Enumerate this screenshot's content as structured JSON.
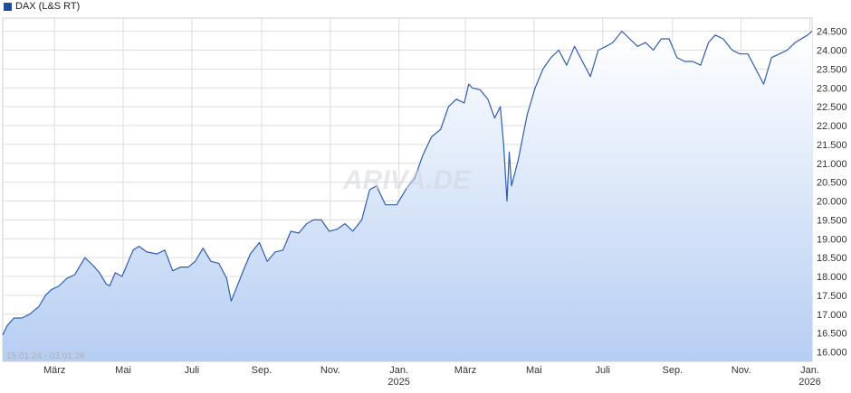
{
  "legend": {
    "label": "DAX (L&S RT)",
    "color": "#1f4e9c"
  },
  "range_text": "15.01.24 - 03.01.26",
  "watermark": "ARIVA.DE",
  "colors": {
    "line": "#2d5eb0",
    "fill_top": "#ffffff",
    "fill_bottom": "#b6cef3",
    "grid": "#dddddd",
    "axis_text": "#333333"
  },
  "chart_data": {
    "type": "area",
    "title": "",
    "xlabel": "",
    "ylabel": "",
    "ylim": [
      15750,
      24850
    ],
    "grid": true,
    "legend_position": "top-left",
    "y_ticks": [
      16000,
      16500,
      17000,
      17500,
      18000,
      18500,
      19000,
      19500,
      20000,
      20500,
      21000,
      21500,
      22000,
      22500,
      23000,
      23500,
      24000,
      24500
    ],
    "y_tick_labels": [
      "16.000",
      "16.500",
      "17.000",
      "17.500",
      "18.000",
      "18.500",
      "19.000",
      "19.500",
      "20.000",
      "20.500",
      "21.000",
      "21.500",
      "22.000",
      "22.500",
      "23.000",
      "23.500",
      "24.000",
      "24.500"
    ],
    "x_ticks": [
      {
        "date": "2024-03-01",
        "label": "März",
        "sub": ""
      },
      {
        "date": "2024-05-01",
        "label": "Mai",
        "sub": ""
      },
      {
        "date": "2024-07-01",
        "label": "Juli",
        "sub": ""
      },
      {
        "date": "2024-09-01",
        "label": "Sep.",
        "sub": ""
      },
      {
        "date": "2024-11-01",
        "label": "Nov.",
        "sub": ""
      },
      {
        "date": "2025-01-01",
        "label": "Jan.",
        "sub": "2025"
      },
      {
        "date": "2025-03-01",
        "label": "März",
        "sub": ""
      },
      {
        "date": "2025-05-01",
        "label": "Mai",
        "sub": ""
      },
      {
        "date": "2025-07-01",
        "label": "Juli",
        "sub": ""
      },
      {
        "date": "2025-09-01",
        "label": "Sep.",
        "sub": ""
      },
      {
        "date": "2025-11-01",
        "label": "Nov.",
        "sub": ""
      },
      {
        "date": "2026-01-01",
        "label": "Jan.",
        "sub": "2026"
      }
    ],
    "series": [
      {
        "x": [
          "2024-01-15",
          "2024-01-19",
          "2024-01-25",
          "2024-02-01",
          "2024-02-08",
          "2024-02-12",
          "2024-02-16",
          "2024-02-22",
          "2024-02-27",
          "2024-03-05",
          "2024-03-12",
          "2024-03-19",
          "2024-03-22",
          "2024-03-28",
          "2024-04-04",
          "2024-04-10",
          "2024-04-16",
          "2024-04-19",
          "2024-04-24",
          "2024-04-30",
          "2024-05-07",
          "2024-05-10",
          "2024-05-15",
          "2024-05-22",
          "2024-05-31",
          "2024-06-07",
          "2024-06-14",
          "2024-06-21",
          "2024-06-28",
          "2024-07-04",
          "2024-07-11",
          "2024-07-18",
          "2024-07-25",
          "2024-08-01",
          "2024-08-05",
          "2024-08-09",
          "2024-08-15",
          "2024-08-22",
          "2024-08-30",
          "2024-09-06",
          "2024-09-13",
          "2024-09-20",
          "2024-09-27",
          "2024-10-04",
          "2024-10-11",
          "2024-10-17",
          "2024-10-24",
          "2024-10-31",
          "2024-11-07",
          "2024-11-14",
          "2024-11-21",
          "2024-11-29",
          "2024-12-06",
          "2024-12-12",
          "2024-12-20",
          "2024-12-30",
          "2025-01-08",
          "2025-01-15",
          "2025-01-22",
          "2025-01-30",
          "2025-02-07",
          "2025-02-14",
          "2025-02-21",
          "2025-02-28",
          "2025-03-04",
          "2025-03-07",
          "2025-03-14",
          "2025-03-21",
          "2025-03-27",
          "2025-04-01",
          "2025-04-04",
          "2025-04-07",
          "2025-04-09",
          "2025-04-11",
          "2025-04-17",
          "2025-04-25",
          "2025-05-02",
          "2025-05-09",
          "2025-05-16",
          "2025-05-23",
          "2025-05-30",
          "2025-06-06",
          "2025-06-13",
          "2025-06-20",
          "2025-06-27",
          "2025-07-04",
          "2025-07-10",
          "2025-07-18",
          "2025-07-25",
          "2025-08-01",
          "2025-08-08",
          "2025-08-15",
          "2025-08-22",
          "2025-08-29",
          "2025-09-05",
          "2025-09-12",
          "2025-09-19",
          "2025-09-26",
          "2025-10-03",
          "2025-10-09",
          "2025-10-16",
          "2025-10-24",
          "2025-10-31",
          "2025-11-07",
          "2025-11-14",
          "2025-11-21",
          "2025-11-28",
          "2025-12-05",
          "2025-12-12",
          "2025-12-19",
          "2025-12-30",
          "2026-01-03"
        ],
        "values": [
          16450,
          16700,
          16900,
          16900,
          17000,
          17100,
          17200,
          17500,
          17650,
          17750,
          17950,
          18050,
          18200,
          18500,
          18300,
          18100,
          17800,
          17750,
          18100,
          18000,
          18500,
          18700,
          18800,
          18650,
          18600,
          18700,
          18150,
          18250,
          18250,
          18400,
          18750,
          18400,
          18350,
          17950,
          17350,
          17650,
          18100,
          18600,
          18900,
          18400,
          18650,
          18700,
          19200,
          19150,
          19400,
          19500,
          19500,
          19200,
          19250,
          19400,
          19200,
          19500,
          20300,
          20400,
          19900,
          19900,
          20350,
          20600,
          21200,
          21700,
          21900,
          22500,
          22700,
          22600,
          23100,
          23000,
          22950,
          22700,
          22200,
          22500,
          21500,
          20000,
          21300,
          20400,
          21100,
          22300,
          23000,
          23500,
          23800,
          24000,
          23600,
          24100,
          23700,
          23300,
          24000,
          24100,
          24200,
          24500,
          24300,
          24100,
          24200,
          24000,
          24300,
          24300,
          23800,
          23700,
          23700,
          23600,
          24200,
          24400,
          24300,
          24000,
          23900,
          23900,
          23500,
          23100,
          23800,
          23900,
          24000,
          24200,
          24400,
          24500
        ]
      }
    ]
  }
}
